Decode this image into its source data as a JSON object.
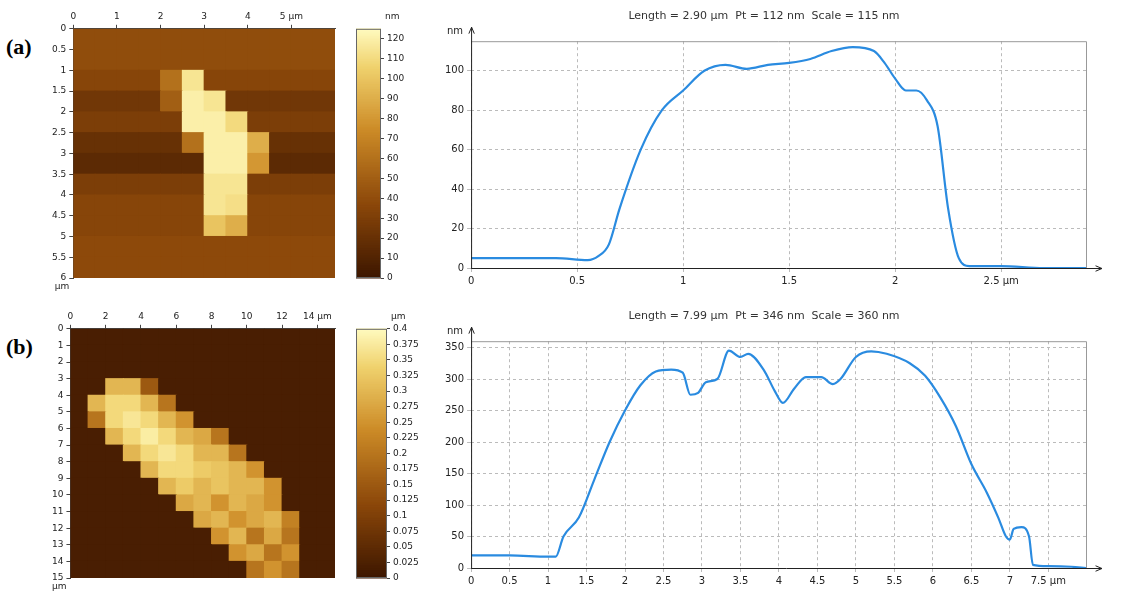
{
  "chart_data": [
    {
      "type": "heatmap",
      "panel": "(a)",
      "ylabel": "µm",
      "xlim": [
        0,
        6
      ],
      "ylim": [
        0,
        6
      ],
      "xticks": [
        0,
        1,
        2,
        3,
        4,
        {
          "value": 5,
          "label": "5 µm"
        }
      ],
      "yticks": [
        0,
        0.5,
        1,
        1.5,
        2,
        2.5,
        3,
        3.5,
        4,
        4.5,
        5,
        5.5,
        6
      ],
      "x_bins": [
        0,
        0.5,
        1,
        1.5,
        2,
        2.5,
        3,
        3.5,
        4,
        4.5,
        5,
        5.5,
        6
      ],
      "y_bins": [
        0,
        0.5,
        1,
        1.5,
        2,
        2.5,
        3,
        3.5,
        4,
        4.5,
        5,
        5.5,
        6
      ],
      "cells": [
        [
          40,
          40,
          40,
          40,
          40,
          40,
          40,
          40,
          40,
          40,
          40,
          40
        ],
        [
          40,
          40,
          40,
          40,
          40,
          40,
          40,
          40,
          40,
          40,
          40,
          40
        ],
        [
          35,
          35,
          35,
          35,
          60,
          115,
          35,
          35,
          35,
          35,
          35,
          35
        ],
        [
          25,
          25,
          25,
          25,
          50,
          120,
          115,
          25,
          25,
          25,
          25,
          25
        ],
        [
          30,
          30,
          30,
          30,
          30,
          120,
          120,
          110,
          30,
          30,
          30,
          30
        ],
        [
          20,
          20,
          20,
          20,
          20,
          60,
          120,
          120,
          90,
          20,
          20,
          20
        ],
        [
          15,
          15,
          15,
          15,
          15,
          15,
          120,
          120,
          80,
          15,
          15,
          15
        ],
        [
          30,
          30,
          30,
          30,
          30,
          30,
          115,
          115,
          30,
          30,
          30,
          30
        ],
        [
          35,
          35,
          35,
          35,
          35,
          35,
          115,
          112,
          35,
          35,
          35,
          35
        ],
        [
          35,
          35,
          35,
          35,
          35,
          35,
          100,
          90,
          35,
          35,
          35,
          35
        ],
        [
          38,
          38,
          38,
          38,
          38,
          38,
          38,
          38,
          38,
          38,
          38,
          38
        ],
        [
          38,
          38,
          38,
          38,
          38,
          38,
          38,
          38,
          38,
          38,
          38,
          38
        ]
      ],
      "colorbar": {
        "label": "nm",
        "range": [
          0,
          125
        ],
        "ticks": [
          0,
          10,
          20,
          30,
          40,
          50,
          60,
          70,
          80,
          90,
          100,
          110,
          120
        ]
      }
    },
    {
      "type": "line",
      "title": "Length = 2.90 µm  Pt = 112 nm  Scale = 115 nm",
      "ylabel": "nm",
      "color": "#2a8be0",
      "grid": true,
      "xlim": [
        0,
        2.9
      ],
      "ylim": [
        0,
        115
      ],
      "xticks": [
        0,
        0.5,
        1,
        1.5,
        2,
        {
          "value": 2.5,
          "label": "2.5 µm"
        }
      ],
      "yticks": [
        0,
        20,
        40,
        60,
        80,
        100
      ],
      "x": [
        0,
        0.2,
        0.4,
        0.55,
        0.6,
        0.65,
        0.7,
        0.8,
        0.9,
        1.0,
        1.1,
        1.2,
        1.3,
        1.4,
        1.5,
        1.6,
        1.7,
        1.8,
        1.9,
        1.95,
        2.0,
        2.05,
        2.1,
        2.15,
        2.2,
        2.25,
        2.3,
        2.35,
        2.5,
        2.7,
        2.9
      ],
      "values": [
        5,
        5,
        5,
        4,
        6,
        12,
        30,
        60,
        80,
        90,
        100,
        103,
        101,
        103,
        104,
        106,
        110,
        112,
        110,
        104,
        96,
        90,
        90,
        85,
        72,
        30,
        5,
        1,
        1,
        0,
        0
      ]
    },
    {
      "type": "heatmap",
      "panel": "(b)",
      "ylabel": "µm",
      "xlim": [
        0,
        15
      ],
      "ylim": [
        0,
        15
      ],
      "xticks": [
        0,
        2,
        4,
        6,
        8,
        10,
        12,
        {
          "value": 14,
          "label": "14 µm"
        }
      ],
      "yticks": [
        0,
        1,
        2,
        3,
        4,
        5,
        6,
        7,
        8,
        9,
        10,
        11,
        12,
        13,
        14,
        15
      ],
      "x_bins": [
        0,
        1,
        2,
        3,
        4,
        5,
        6,
        7,
        8,
        9,
        10,
        11,
        12,
        13,
        14,
        15
      ],
      "y_bins": [
        0,
        1,
        2,
        3,
        4,
        5,
        6,
        7,
        8,
        9,
        10,
        11,
        12,
        13,
        14,
        15
      ],
      "cells": [
        [
          0.02,
          0.02,
          0.02,
          0.02,
          0.02,
          0.02,
          0.02,
          0.02,
          0.02,
          0.02,
          0.02,
          0.02,
          0.02,
          0.02,
          0.02
        ],
        [
          0.02,
          0.02,
          0.02,
          0.02,
          0.02,
          0.02,
          0.02,
          0.02,
          0.02,
          0.02,
          0.02,
          0.02,
          0.02,
          0.02,
          0.02
        ],
        [
          0.02,
          0.02,
          0.02,
          0.02,
          0.02,
          0.02,
          0.02,
          0.02,
          0.02,
          0.02,
          0.02,
          0.02,
          0.02,
          0.02,
          0.02
        ],
        [
          0.02,
          0.02,
          0.3,
          0.3,
          0.15,
          0.02,
          0.02,
          0.02,
          0.02,
          0.02,
          0.02,
          0.02,
          0.02,
          0.02,
          0.02
        ],
        [
          0.02,
          0.3,
          0.35,
          0.35,
          0.3,
          0.2,
          0.02,
          0.02,
          0.02,
          0.02,
          0.02,
          0.02,
          0.02,
          0.02,
          0.02
        ],
        [
          0.02,
          0.2,
          0.35,
          0.37,
          0.35,
          0.3,
          0.25,
          0.02,
          0.02,
          0.02,
          0.02,
          0.02,
          0.02,
          0.02,
          0.02
        ],
        [
          0.02,
          0.02,
          0.3,
          0.35,
          0.38,
          0.35,
          0.3,
          0.28,
          0.2,
          0.02,
          0.02,
          0.02,
          0.02,
          0.02,
          0.02
        ],
        [
          0.02,
          0.02,
          0.02,
          0.3,
          0.35,
          0.37,
          0.35,
          0.3,
          0.3,
          0.2,
          0.02,
          0.02,
          0.02,
          0.02,
          0.02
        ],
        [
          0.02,
          0.02,
          0.02,
          0.02,
          0.3,
          0.35,
          0.35,
          0.33,
          0.32,
          0.3,
          0.25,
          0.02,
          0.02,
          0.02,
          0.02
        ],
        [
          0.02,
          0.02,
          0.02,
          0.02,
          0.02,
          0.3,
          0.33,
          0.3,
          0.32,
          0.3,
          0.3,
          0.25,
          0.02,
          0.02,
          0.02
        ],
        [
          0.02,
          0.02,
          0.02,
          0.02,
          0.02,
          0.02,
          0.28,
          0.3,
          0.25,
          0.3,
          0.28,
          0.25,
          0.02,
          0.02,
          0.02
        ],
        [
          0.02,
          0.02,
          0.02,
          0.02,
          0.02,
          0.02,
          0.02,
          0.28,
          0.3,
          0.25,
          0.28,
          0.3,
          0.22,
          0.02,
          0.02
        ],
        [
          0.02,
          0.02,
          0.02,
          0.02,
          0.02,
          0.02,
          0.02,
          0.02,
          0.25,
          0.3,
          0.2,
          0.28,
          0.2,
          0.02,
          0.02
        ],
        [
          0.02,
          0.02,
          0.02,
          0.02,
          0.02,
          0.02,
          0.02,
          0.02,
          0.02,
          0.25,
          0.28,
          0.2,
          0.25,
          0.02,
          0.02
        ],
        [
          0.02,
          0.02,
          0.02,
          0.02,
          0.02,
          0.02,
          0.02,
          0.02,
          0.02,
          0.02,
          0.2,
          0.25,
          0.2,
          0.02,
          0.02
        ]
      ],
      "colorbar": {
        "label": "µm",
        "range": [
          0,
          0.4
        ],
        "ticks": [
          0,
          0.025,
          0.05,
          0.075,
          0.1,
          0.125,
          0.15,
          0.175,
          0.2,
          0.225,
          0.25,
          0.275,
          0.3,
          0.325,
          0.35,
          0.375,
          0.4
        ]
      }
    },
    {
      "type": "line",
      "title": "Length = 7.99 µm  Pt = 346 nm  Scale = 360 nm",
      "ylabel": "nm",
      "color": "#2a8be0",
      "grid": true,
      "xlim": [
        0,
        7.99
      ],
      "ylim": [
        0,
        360
      ],
      "xticks": [
        0,
        0.5,
        1,
        1.5,
        2,
        2.5,
        3,
        3.5,
        4,
        4.5,
        5,
        5.5,
        6,
        6.5,
        7,
        {
          "value": 7.5,
          "label": "7.5 µm"
        }
      ],
      "yticks": [
        0,
        50,
        100,
        150,
        200,
        250,
        300,
        350
      ],
      "x": [
        0,
        0.5,
        1.0,
        1.1,
        1.2,
        1.4,
        1.6,
        1.8,
        2.0,
        2.2,
        2.4,
        2.6,
        2.75,
        2.85,
        2.95,
        3.05,
        3.2,
        3.35,
        3.5,
        3.6,
        3.8,
        3.95,
        4.05,
        4.2,
        4.35,
        4.55,
        4.7,
        4.8,
        5.0,
        5.2,
        5.4,
        5.7,
        5.9,
        6.1,
        6.3,
        6.5,
        6.7,
        6.85,
        6.95,
        7.0,
        7.05,
        7.15,
        7.25,
        7.3,
        7.5,
        7.8,
        7.99
      ],
      "values": [
        20,
        20,
        18,
        18,
        50,
        80,
        140,
        200,
        250,
        290,
        312,
        315,
        310,
        275,
        278,
        295,
        300,
        345,
        335,
        340,
        315,
        280,
        262,
        285,
        303,
        303,
        292,
        300,
        335,
        344,
        340,
        325,
        305,
        270,
        225,
        165,
        120,
        80,
        50,
        45,
        62,
        65,
        50,
        5,
        3,
        2,
        0
      ]
    }
  ]
}
